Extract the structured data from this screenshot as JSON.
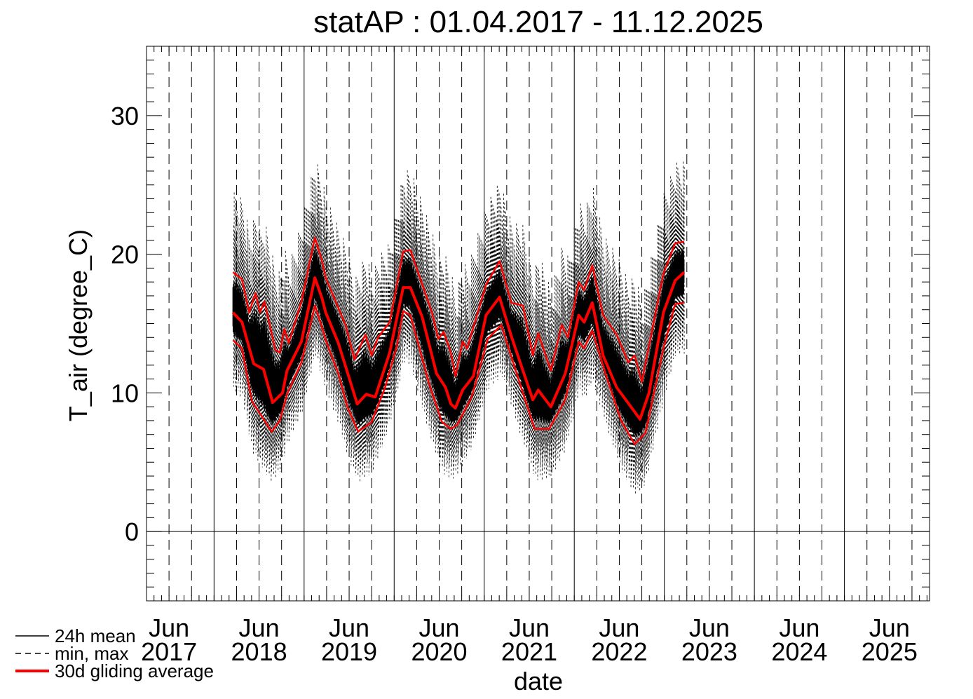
{
  "chart_data": {
    "type": "line",
    "title": "statAP : 01.04.2017 - 11.12.2025",
    "xlabel": "date",
    "ylabel": "T_air (degree_C)",
    "xlim": [
      2017.25,
      2025.945
    ],
    "ylim": [
      -5,
      35
    ],
    "yticks": [
      0,
      10,
      20,
      30
    ],
    "xtick_labels": [
      {
        "x": 2017.5,
        "month": "Jun",
        "year": "2017"
      },
      {
        "x": 2018.5,
        "month": "Jun",
        "year": "2018"
      },
      {
        "x": 2019.5,
        "month": "Jun",
        "year": "2019"
      },
      {
        "x": 2020.5,
        "month": "Jun",
        "year": "2020"
      },
      {
        "x": 2021.5,
        "month": "Jun",
        "year": "2021"
      },
      {
        "x": 2022.5,
        "month": "Jun",
        "year": "2022"
      },
      {
        "x": 2023.5,
        "month": "Jun",
        "year": "2023"
      },
      {
        "x": 2024.5,
        "month": "Jun",
        "year": "2024"
      },
      {
        "x": 2025.5,
        "month": "Jun",
        "year": "2025"
      }
    ],
    "legend": {
      "placement": "bottom-left",
      "entries": [
        {
          "label": "24h mean",
          "style": "solid-black"
        },
        {
          "label": "min, max",
          "style": "dashed-black"
        },
        {
          "label": "30d gliding average",
          "style": "solid-red"
        }
      ]
    },
    "colors": {
      "daily": "#000000",
      "gliding": "#ff0000"
    },
    "series": [
      {
        "name": "30d gliding average (mean)",
        "x": [
          2018.21,
          2018.31,
          2018.44,
          2018.55,
          2018.65,
          2018.76,
          2018.81,
          2018.97,
          2019.12,
          2019.2,
          2019.24,
          2019.38,
          2019.59,
          2019.69,
          2019.79,
          2019.95,
          2020.1,
          2020.18,
          2020.31,
          2020.47,
          2020.57,
          2020.63,
          2020.68,
          2020.76,
          2020.88,
          2021.02,
          2021.17,
          2021.3,
          2021.54,
          2021.6,
          2021.74,
          2021.9,
          2022.05,
          2022.11,
          2022.2,
          2022.32,
          2022.47,
          2022.73,
          2022.83,
          2022.99,
          2023.12,
          2023.22
        ],
        "y": [
          15.8,
          15.1,
          12.1,
          11.7,
          9.3,
          10.0,
          11.6,
          13.7,
          18.3,
          16.8,
          15.8,
          13.6,
          9.2,
          9.9,
          9.7,
          12.9,
          17.6,
          17.6,
          15.5,
          11.4,
          10.4,
          9.2,
          8.9,
          10.2,
          11.2,
          15.6,
          16.9,
          14.1,
          9.5,
          10.2,
          9.0,
          11.4,
          15.6,
          15.1,
          16.5,
          12.7,
          10.4,
          8.1,
          10.0,
          15.8,
          18.1,
          18.7
        ]
      },
      {
        "name": "30d gliding average (max)",
        "x": [
          2018.21,
          2018.31,
          2018.39,
          2018.46,
          2018.51,
          2018.56,
          2018.68,
          2018.73,
          2018.78,
          2018.83,
          2018.97,
          2019.12,
          2019.2,
          2019.24,
          2019.46,
          2019.56,
          2019.68,
          2019.75,
          2019.82,
          2019.95,
          2020.1,
          2020.18,
          2020.42,
          2020.49,
          2020.55,
          2020.63,
          2020.68,
          2020.76,
          2020.81,
          2021.02,
          2021.17,
          2021.3,
          2021.43,
          2021.54,
          2021.6,
          2021.74,
          2021.86,
          2021.93,
          2022.05,
          2022.11,
          2022.2,
          2022.32,
          2022.47,
          2022.6,
          2022.67,
          2022.75,
          2022.99,
          2023.12,
          2023.22
        ],
        "y": [
          18.7,
          18.2,
          15.8,
          17.2,
          15.8,
          16.6,
          13.1,
          12.9,
          14.6,
          13.6,
          16.6,
          21.2,
          19.5,
          18.3,
          14.9,
          12.4,
          14.2,
          12.7,
          14.0,
          15.1,
          20.2,
          20.3,
          15.8,
          13.9,
          14.4,
          12.9,
          11.2,
          13.7,
          13.2,
          17.8,
          19.5,
          16.5,
          16.3,
          12.7,
          14.3,
          11.6,
          14.9,
          14.0,
          18.0,
          17.4,
          19.2,
          15.6,
          14.2,
          12.2,
          12.7,
          10.8,
          18.6,
          20.8,
          20.9
        ]
      },
      {
        "name": "30d gliding average (min)",
        "x": [
          2018.21,
          2018.31,
          2018.42,
          2018.52,
          2018.64,
          2018.73,
          2018.81,
          2018.97,
          2019.12,
          2019.2,
          2019.24,
          2019.38,
          2019.48,
          2019.6,
          2019.75,
          2019.9,
          2020.03,
          2020.1,
          2020.18,
          2020.39,
          2020.53,
          2020.63,
          2020.7,
          2020.86,
          2021.04,
          2021.19,
          2021.35,
          2021.56,
          2021.72,
          2021.9,
          2022.05,
          2022.11,
          2022.2,
          2022.36,
          2022.52,
          2022.67,
          2022.79,
          2022.99,
          2023.12,
          2023.22
        ],
        "y": [
          13.8,
          13.2,
          9.4,
          8.4,
          7.2,
          8.0,
          9.9,
          12.2,
          16.3,
          14.7,
          13.8,
          11.4,
          9.0,
          7.2,
          7.9,
          10.4,
          13.4,
          15.9,
          15.6,
          10.6,
          7.9,
          7.4,
          7.7,
          9.7,
          13.9,
          14.9,
          11.6,
          7.4,
          7.4,
          9.5,
          13.7,
          13.2,
          14.5,
          11.1,
          8.0,
          6.3,
          7.1,
          13.2,
          16.4,
          16.5
        ]
      }
    ]
  }
}
